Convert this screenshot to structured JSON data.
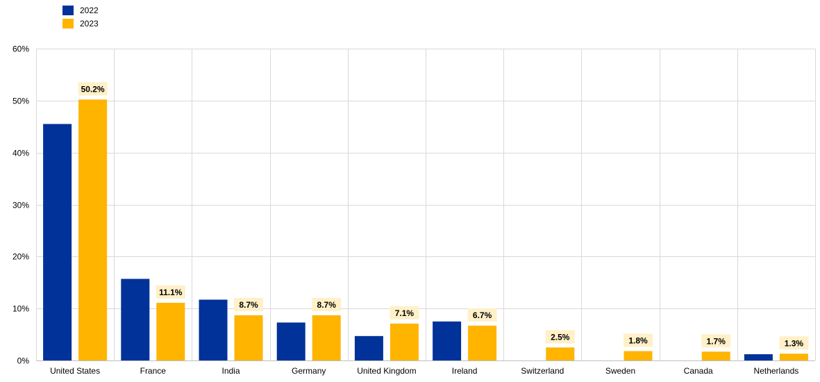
{
  "chart_data": {
    "type": "bar",
    "categories": [
      "United States",
      "France",
      "India",
      "Germany",
      "United Kingdom",
      "Ireland",
      "Switzerland",
      "Sweden",
      "Canada",
      "Netherlands"
    ],
    "series": [
      {
        "name": "2022",
        "color": "#003299",
        "values": [
          45.5,
          15.7,
          11.7,
          7.3,
          4.7,
          7.5,
          0,
          0,
          0,
          1.2
        ]
      },
      {
        "name": "2023",
        "color": "#FFB400",
        "values": [
          50.2,
          11.1,
          8.7,
          8.7,
          7.1,
          6.7,
          2.5,
          1.8,
          1.7,
          1.3
        ]
      }
    ],
    "data_labels": [
      "50.2%",
      "11.1%",
      "8.7%",
      "8.7%",
      "7.1%",
      "6.7%",
      "2.5%",
      "1.8%",
      "1.7%",
      "1.3%"
    ],
    "y_ticks": [
      0,
      10,
      20,
      30,
      40,
      50,
      60
    ],
    "y_tick_labels": [
      "0%",
      "10%",
      "20%",
      "30%",
      "40%",
      "50%",
      "60%"
    ],
    "ylim": [
      0,
      60
    ],
    "grid": true,
    "legend_position": "top-left",
    "label_bg_color": "#FFF0C8"
  },
  "legend": {
    "items": [
      {
        "label": "2022",
        "color": "#003299"
      },
      {
        "label": "2023",
        "color": "#FFB400"
      }
    ]
  }
}
